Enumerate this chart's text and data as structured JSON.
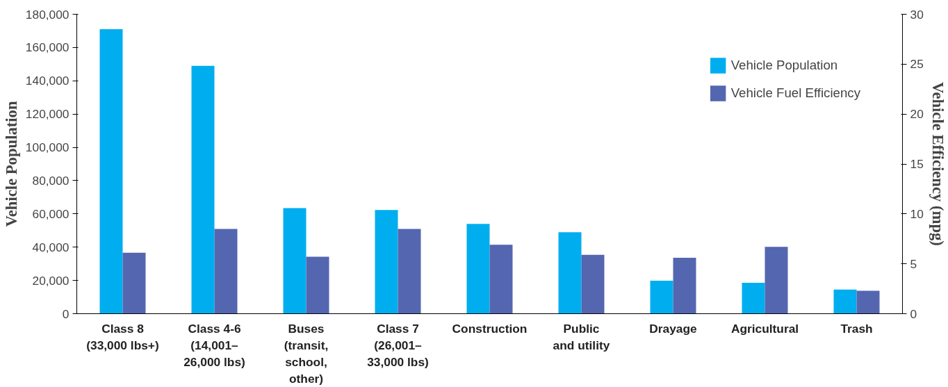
{
  "chart_data": {
    "type": "bar",
    "ylabel": "Vehicle Population",
    "y2label": "Vehicle Efficiency (mpg)",
    "categories": [
      "Class 8\n(33,000 lbs+)",
      "Class 4-6\n(14,001–\n26,000 lbs)",
      "Buses\n(transit,\nschool,\nother)",
      "Class 7\n(26,001–\n33,000 lbs)",
      "Construction",
      "Public\nand utility",
      "Drayage",
      "Agricultural",
      "Trash"
    ],
    "series": [
      {
        "name": "Vehicle Population",
        "color": "#00aeef",
        "values": [
          171000,
          149000,
          63500,
          62300,
          54000,
          49000,
          19800,
          18600,
          14500
        ]
      },
      {
        "name": "Vehicle Fuel Efficiency",
        "color": "#5566b0",
        "axis": "y2",
        "values": [
          6.1,
          8.5,
          5.7,
          8.5,
          6.9,
          5.9,
          5.6,
          6.7,
          2.3
        ]
      }
    ],
    "ylim": [
      0,
      180000
    ],
    "yticks": [
      {
        "value": 0,
        "label": "0"
      },
      {
        "value": 20000,
        "label": "20,000"
      },
      {
        "value": 40000,
        "label": "40,000"
      },
      {
        "value": 60000,
        "label": "60,000"
      },
      {
        "value": 80000,
        "label": "80,000"
      },
      {
        "value": 100000,
        "label": "100,000"
      },
      {
        "value": 120000,
        "label": "120,000"
      },
      {
        "value": 140000,
        "label": "140,000"
      },
      {
        "value": 160000,
        "label": "160,000"
      },
      {
        "value": 180000,
        "label": "180,000"
      }
    ],
    "y2lim": [
      0,
      30
    ],
    "y2ticks": [
      0,
      5,
      10,
      15,
      20,
      25,
      30
    ],
    "grid": false,
    "legend": "top right"
  }
}
